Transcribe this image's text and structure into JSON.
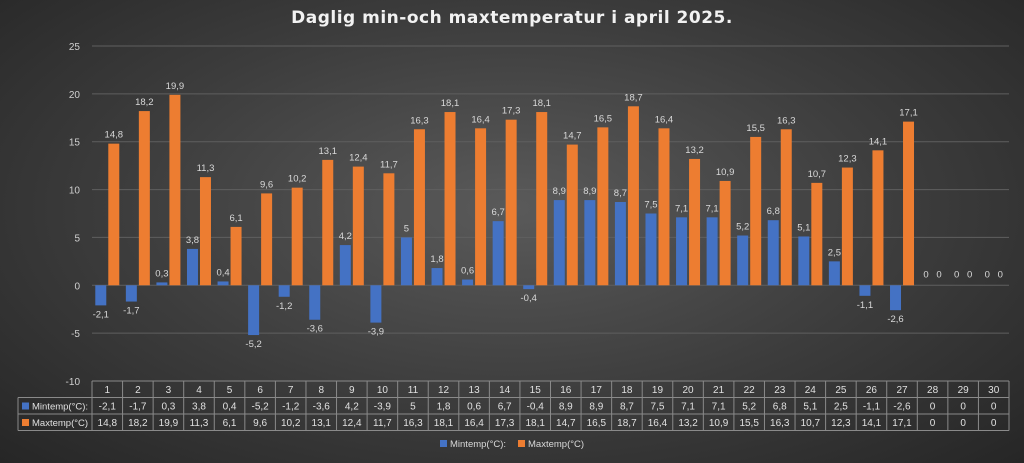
{
  "chart_data": {
    "type": "bar",
    "title": "Daglig min-och maxtemperatur i april 2025.",
    "xlabel": "",
    "ylabel": "",
    "ylim": [
      -10,
      25
    ],
    "yticks": [
      "25",
      "20",
      "15",
      "10",
      "5",
      "0",
      "-5",
      "-10"
    ],
    "ytick_values": [
      25,
      20,
      15,
      10,
      5,
      0,
      -5,
      -10
    ],
    "categories": [
      "1",
      "2",
      "3",
      "4",
      "5",
      "6",
      "7",
      "8",
      "9",
      "10",
      "11",
      "12",
      "13",
      "14",
      "15",
      "16",
      "17",
      "18",
      "19",
      "20",
      "21",
      "22",
      "23",
      "24",
      "25",
      "26",
      "27",
      "28",
      "29",
      "30"
    ],
    "grid": true,
    "legend": "bottom",
    "data_table": true,
    "series": [
      {
        "name": "Mintemp(°C):",
        "table_label": "Mintemp(°C):",
        "color": "#4472c4",
        "values": [
          -2.1,
          -1.7,
          0.3,
          3.8,
          0.4,
          -5.2,
          -1.2,
          -3.6,
          4.2,
          -3.9,
          5,
          1.8,
          0.6,
          6.7,
          -0.4,
          8.9,
          8.9,
          8.7,
          7.5,
          7.1,
          7.1,
          5.2,
          6.8,
          5.1,
          2.5,
          -1.1,
          -2.6,
          0,
          0,
          0
        ],
        "labels": [
          "-2,1",
          "-1,7",
          "0,3",
          "3,8",
          "0,4",
          "-5,2",
          "-1,2",
          "-3,6",
          "4,2",
          "-3,9",
          "5",
          "1,8",
          "0,6",
          "6,7",
          "-0,4",
          "8,9",
          "8,9",
          "8,7",
          "7,5",
          "7,1",
          "7,1",
          "5,2",
          "6,8",
          "5,1",
          "2,5",
          "-1,1",
          "-2,6",
          "0",
          "0",
          "0"
        ]
      },
      {
        "name": "Maxtemp(°C)",
        "table_label": "Maxtemp(°C)",
        "color": "#ed7d31",
        "values": [
          14.8,
          18.2,
          19.9,
          11.3,
          6.1,
          9.6,
          10.2,
          13.1,
          12.4,
          11.7,
          16.3,
          18.1,
          16.4,
          17.3,
          18.1,
          14.7,
          16.5,
          18.7,
          16.4,
          13.2,
          10.9,
          15.5,
          16.3,
          10.7,
          12.3,
          14.1,
          17.1,
          0,
          0,
          0
        ],
        "labels": [
          "14,8",
          "18,2",
          "19,9",
          "11,3",
          "6,1",
          "9,6",
          "10,2",
          "13,1",
          "12,4",
          "11,7",
          "16,3",
          "18,1",
          "16,4",
          "17,3",
          "18,1",
          "14,7",
          "16,5",
          "18,7",
          "16,4",
          "13,2",
          "10,9",
          "15,5",
          "16,3",
          "10,7",
          "12,3",
          "14,1",
          "17,1",
          "0",
          "0",
          "0"
        ]
      }
    ]
  }
}
